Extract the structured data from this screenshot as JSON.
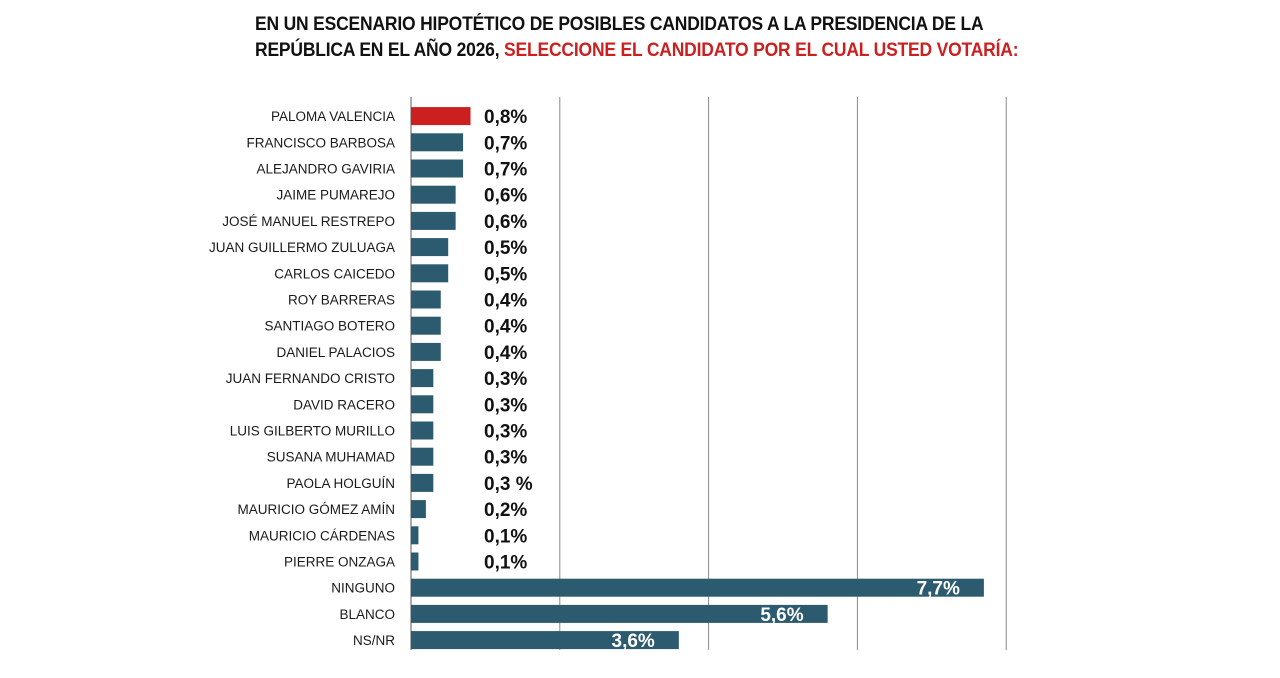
{
  "title": {
    "part1": "EN UN ESCENARIO HIPOTÉTICO DE POSIBLES CANDIDATOS A LA PRESIDENCIA DE LA REPÚBLICA EN EL AÑO 2026, ",
    "part2": "SELECCIONE EL CANDIDATO POR EL CUAL USTED VOTARÍA:"
  },
  "colors": {
    "bar": "#2c5a6e",
    "highlight": "#cc1f1f",
    "grid": "#8a8a8a"
  },
  "chart_data": {
    "type": "bar",
    "orientation": "horizontal",
    "title": "EN UN ESCENARIO HIPOTÉTICO DE POSIBLES CANDIDATOS A LA PRESIDENCIA DE LA REPÚBLICA EN EL AÑO 2026, SELECCIONE EL CANDIDATO POR EL CUAL USTED VOTARÍA:",
    "xlabel": "",
    "ylabel": "",
    "xlim": [
      0,
      8
    ],
    "grid": true,
    "highlight_category": "PALOMA VALENCIA",
    "categories": [
      "PALOMA VALENCIA",
      "FRANCISCO BARBOSA",
      "ALEJANDRO GAVIRIA",
      "JAIME PUMAREJO",
      "JOSÉ MANUEL RESTREPO",
      "JUAN GUILLERMO ZULUAGA",
      "CARLOS CAICEDO",
      "ROY BARRERAS",
      "SANTIAGO BOTERO",
      "DANIEL PALACIOS",
      "JUAN FERNANDO CRISTO",
      "DAVID RACERO",
      "LUIS GILBERTO MURILLO",
      "SUSANA MUHAMAD",
      "PAOLA HOLGUÍN",
      "MAURICIO GÓMEZ AMÍN",
      "MAURICIO CÁRDENAS",
      "PIERRE ONZAGA",
      "NINGUNO",
      "BLANCO",
      "NS/NR"
    ],
    "values": [
      0.8,
      0.7,
      0.7,
      0.6,
      0.6,
      0.5,
      0.5,
      0.4,
      0.4,
      0.4,
      0.3,
      0.3,
      0.3,
      0.3,
      0.3,
      0.2,
      0.1,
      0.1,
      7.7,
      5.6,
      3.6
    ],
    "value_labels": [
      "0,8%",
      "0,7%",
      "0,7%",
      "0,6%",
      "0,6%",
      "0,5%",
      "0,5%",
      "0,4%",
      "0,4%",
      "0,4%",
      "0,3%",
      "0,3%",
      "0,3%",
      "0,3%",
      "0,3 %",
      "0,2%",
      "0,1%",
      "0,1%",
      "7,7%",
      "5,6%",
      "3,6%"
    ]
  }
}
